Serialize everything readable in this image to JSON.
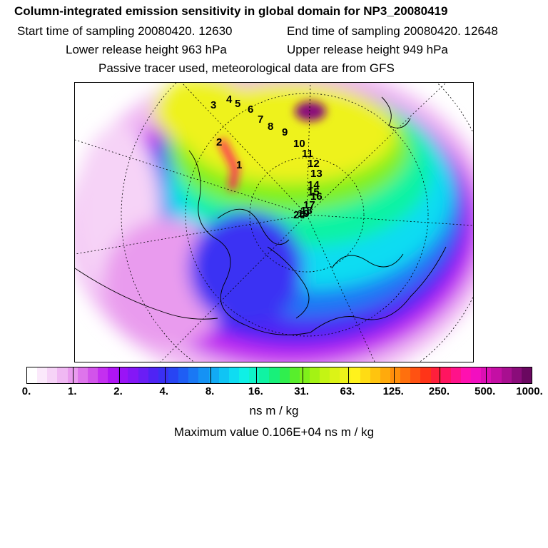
{
  "header": {
    "title": "Column-integrated emission sensitivity in global domain for NP3_20080419",
    "start_time": "Start time of sampling 20080420. 12630",
    "end_time": "End time of sampling 20080420. 12648",
    "lower_release": "Lower release height  963 hPa",
    "upper_release": "Upper release height  949 hPa",
    "note": "Passive tracer used, meteorological data are from GFS"
  },
  "map": {
    "trajectory_labels": [
      "1",
      "2",
      "3",
      "4",
      "5",
      "6",
      "7",
      "8",
      "9",
      "10",
      "11",
      "12",
      "13",
      "14",
      "15",
      "16",
      "17",
      "18",
      "19",
      "20"
    ]
  },
  "colorbar": {
    "tick_labels": [
      "0.",
      "1.",
      "2.",
      "4.",
      "8.",
      "16.",
      "31.",
      "63.",
      "125.",
      "250.",
      "500.",
      "1000."
    ],
    "units": "ns m / kg",
    "colors": [
      "#ffffff",
      "#fbe9fb",
      "#f6d3f7",
      "#f0b8f3",
      "#e99bee",
      "#de75eb",
      "#d254ea",
      "#c42ff0",
      "#b015f4",
      "#9a14f6",
      "#8417f6",
      "#6a1ef5",
      "#4f24f4",
      "#3a30f3",
      "#2845f3",
      "#1f5ef4",
      "#1a78f4",
      "#1592f4",
      "#12aaf4",
      "#10c4f4",
      "#0fdcf2",
      "#0ff0e6",
      "#0ff3c8",
      "#10f3a3",
      "#18f07a",
      "#30ee4e",
      "#58ee2c",
      "#7ff01a",
      "#a4f214",
      "#c4f414",
      "#dcf316",
      "#eef21a",
      "#fff21c",
      "#ffdc14",
      "#ffc40f",
      "#ffaa0c",
      "#ff8e0b",
      "#ff700d",
      "#ff5212",
      "#ff3418",
      "#ff1f3b",
      "#ff1560",
      "#ff128a",
      "#ff10b0",
      "#f20fc0",
      "#dc0fb4",
      "#c40fa4",
      "#a80f90",
      "#8a0c7a",
      "#6a0860"
    ],
    "max_value_text": "Maximum value  0.106E+04 ns m / kg"
  }
}
